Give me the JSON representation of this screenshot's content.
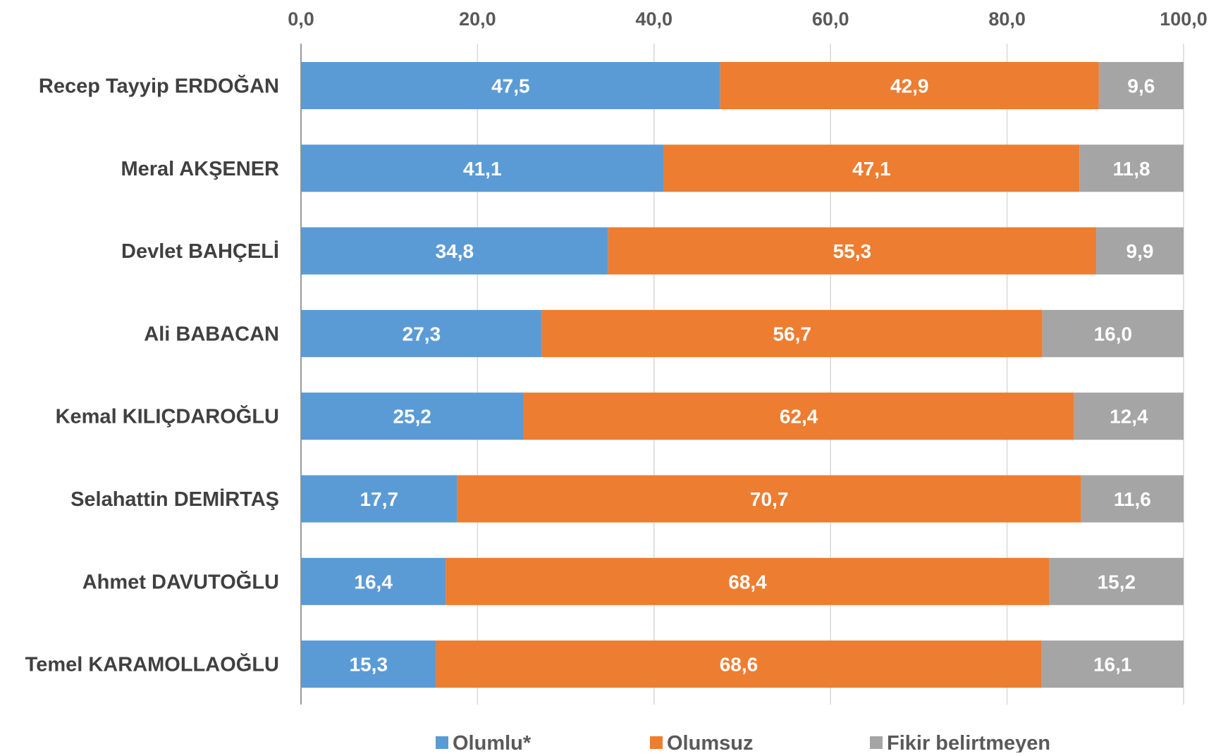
{
  "chart_data": {
    "type": "bar",
    "orientation": "horizontal",
    "stacked": true,
    "xlim": [
      0,
      100
    ],
    "x_ticks": [
      "0,0",
      "20,0",
      "40,0",
      "60,0",
      "80,0",
      "100,0"
    ],
    "x_tick_values": [
      0,
      20,
      40,
      60,
      80,
      100
    ],
    "axis_position": "top",
    "grid": true,
    "legend_position": "bottom",
    "categories": [
      "Recep Tayyip ERDOĞAN",
      "Meral AKŞENER",
      "Devlet BAHÇELİ",
      "Ali BABACAN",
      "Kemal KILIÇDAROĞLU",
      "Selahattin DEMİRTAŞ",
      "Ahmet DAVUTOĞLU",
      "Temel KARAMOLLAOĞLU"
    ],
    "series": [
      {
        "name": "Olumlu*",
        "color": "#5b9bd5",
        "values": [
          47.5,
          41.1,
          34.8,
          27.3,
          25.2,
          17.7,
          16.4,
          15.3
        ],
        "labels": [
          "47,5",
          "41,1",
          "34,8",
          "27,3",
          "25,2",
          "17,7",
          "16,4",
          "15,3"
        ]
      },
      {
        "name": "Olumsuz",
        "color": "#ed7d31",
        "values": [
          42.9,
          47.1,
          55.3,
          56.7,
          62.4,
          70.7,
          68.4,
          68.6
        ],
        "labels": [
          "42,9",
          "47,1",
          "55,3",
          "56,7",
          "62,4",
          "70,7",
          "68,4",
          "68,6"
        ]
      },
      {
        "name": "Fikir belirtmeyen",
        "color": "#a5a5a5",
        "values": [
          9.6,
          11.8,
          9.9,
          16.0,
          12.4,
          11.6,
          15.2,
          16.1
        ],
        "labels": [
          "9,6",
          "11,8",
          "9,9",
          "16,0",
          "12,4",
          "11,6",
          "15,2",
          "16,1"
        ]
      }
    ]
  }
}
